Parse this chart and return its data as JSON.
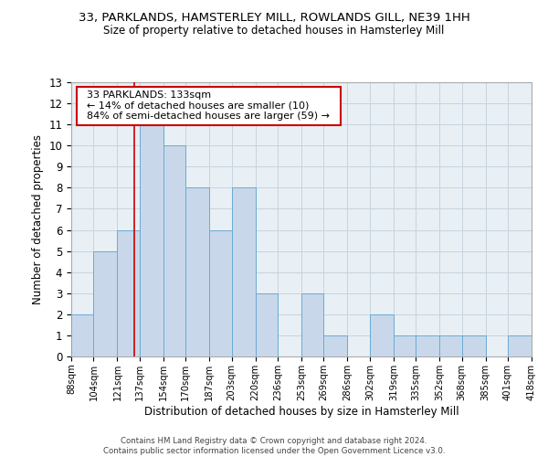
{
  "title1": "33, PARKLANDS, HAMSTERLEY MILL, ROWLANDS GILL, NE39 1HH",
  "title2": "Size of property relative to detached houses in Hamsterley Mill",
  "xlabel": "Distribution of detached houses by size in Hamsterley Mill",
  "ylabel": "Number of detached properties",
  "bin_edges": [
    88,
    104,
    121,
    137,
    154,
    170,
    187,
    203,
    220,
    236,
    253,
    269,
    286,
    302,
    319,
    335,
    352,
    368,
    385,
    401,
    418
  ],
  "bar_heights": [
    2,
    5,
    6,
    11,
    10,
    8,
    6,
    8,
    3,
    0,
    3,
    1,
    0,
    2,
    1,
    1,
    1,
    1,
    0,
    1
  ],
  "bar_color": "#c8d8ea",
  "bar_edge_color": "#6aaad4",
  "grid_color": "#c8d4de",
  "background_color": "#e8eff5",
  "red_line_x": 133,
  "annotation_title": "33 PARKLANDS: 133sqm",
  "annotation_line1": "← 14% of detached houses are smaller (10)",
  "annotation_line2": "84% of semi-detached houses are larger (59) →",
  "annotation_box_facecolor": "#ffffff",
  "annotation_box_edgecolor": "#cc0000",
  "footer1": "Contains HM Land Registry data © Crown copyright and database right 2024.",
  "footer2": "Contains public sector information licensed under the Open Government Licence v3.0.",
  "ylim": [
    0,
    13
  ],
  "yticks": [
    0,
    1,
    2,
    3,
    4,
    5,
    6,
    7,
    8,
    9,
    10,
    11,
    12,
    13
  ]
}
